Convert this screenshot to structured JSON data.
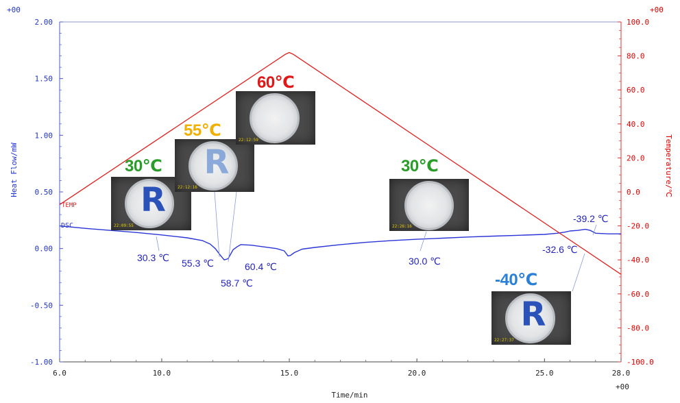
{
  "chart_data": {
    "type": "line",
    "xlabel": "Time/min",
    "ylabel_left": "Heat Flow/mW",
    "ylabel_right": "Temperature/℃",
    "exponent_left_top": "+00",
    "exponent_right_top": "+00",
    "exponent_x": "+00",
    "xlim": [
      6.0,
      28.0
    ],
    "ylim_left": [
      -1.0,
      2.0
    ],
    "ylim_right": [
      -100.0,
      100.0
    ],
    "x_ticks": [
      "6.0",
      "10.0",
      "15.0",
      "20.0",
      "25.0",
      "28.0"
    ],
    "x_tick_values": [
      6.0,
      10.0,
      15.0,
      20.0,
      25.0,
      28.0
    ],
    "y_left_ticks": [
      "2.00",
      "1.50",
      "1.00",
      "0.50",
      "0.00",
      "-0.50",
      "-1.00"
    ],
    "y_left_tick_values": [
      2.0,
      1.5,
      1.0,
      0.5,
      0.0,
      -0.5,
      -1.0
    ],
    "y_right_ticks": [
      "100.0",
      "80.0",
      "60.0",
      "40.0",
      "20.0",
      "0.0",
      "-20.0",
      "-40.0",
      "-60.0",
      "-80.0",
      "-100.0"
    ],
    "y_right_tick_values": [
      100,
      80,
      60,
      40,
      20,
      0,
      -20,
      -40,
      -60,
      -80,
      -100
    ],
    "series": [
      {
        "name": "DSC",
        "axis": "left",
        "color": "#2a34d6",
        "x": [
          6.0,
          7.0,
          8.0,
          9.0,
          10.0,
          11.0,
          11.6,
          11.9,
          12.1,
          12.3,
          12.45,
          12.6,
          12.7,
          12.8,
          12.95,
          13.1,
          13.5,
          14.0,
          14.5,
          14.8,
          14.95,
          15.05,
          15.2,
          15.5,
          16.0,
          17.0,
          18.0,
          19.0,
          20.0,
          21.0,
          22.0,
          23.0,
          24.0,
          25.0,
          25.5,
          25.8,
          26.0,
          26.3,
          26.6,
          26.8,
          27.0,
          27.5,
          28.0
        ],
        "y": [
          0.2,
          0.178,
          0.16,
          0.142,
          0.12,
          0.095,
          0.07,
          0.04,
          0.0,
          -0.06,
          -0.1,
          -0.09,
          -0.05,
          -0.01,
          0.015,
          0.035,
          0.03,
          0.015,
          0.0,
          -0.02,
          -0.065,
          -0.06,
          -0.035,
          -0.005,
          0.01,
          0.035,
          0.055,
          0.07,
          0.082,
          0.092,
          0.102,
          0.11,
          0.117,
          0.125,
          0.135,
          0.145,
          0.155,
          0.16,
          0.17,
          0.16,
          0.135,
          0.13,
          0.13
        ]
      },
      {
        "name": "TEMP",
        "axis": "right",
        "color": "#e02020",
        "x": [
          6.0,
          14.85,
          15.0,
          15.15,
          28.0
        ],
        "y": [
          -7.5,
          81.0,
          82.0,
          81.0,
          -48.5
        ]
      }
    ],
    "annotations": [
      {
        "text": "30.3 ℃",
        "x": 10.0,
        "y": -0.06
      },
      {
        "text": "55.3 ℃",
        "x": 11.9,
        "y": -0.1
      },
      {
        "text": "58.7 ℃",
        "x": 12.45,
        "y": -0.26
      },
      {
        "text": "60.4 ℃",
        "x": 13.3,
        "y": -0.13
      },
      {
        "text": "30.0 ℃",
        "x": 20.3,
        "y": -0.09
      },
      {
        "text": "-32.6 ℃",
        "x": 25.95,
        "y": -0.01
      },
      {
        "text": "-39.2 ℃",
        "x": 26.7,
        "y": 0.27
      }
    ],
    "images": [
      {
        "label": "30℃",
        "label_color": "#2a9c2a",
        "letter": "R",
        "letter_color": "#2b52b8",
        "timestamp": "22:09:55"
      },
      {
        "label": "55℃",
        "label_color": "#f0b000",
        "letter": "R",
        "letter_color": "#7b9fd6",
        "timestamp": "22:12:16"
      },
      {
        "label": "60℃",
        "label_color": "#e01818",
        "letter": "",
        "letter_color": "#ffffff",
        "timestamp": "22:12:59"
      },
      {
        "label": "30℃",
        "label_color": "#2a9c2a",
        "letter": "",
        "letter_color": "#ffffff",
        "timestamp": "22:26:16"
      },
      {
        "label": "-40℃",
        "label_color": "#2a7fd6",
        "letter": "R",
        "letter_color": "#2b52b8",
        "timestamp": "22:27:37"
      }
    ]
  }
}
